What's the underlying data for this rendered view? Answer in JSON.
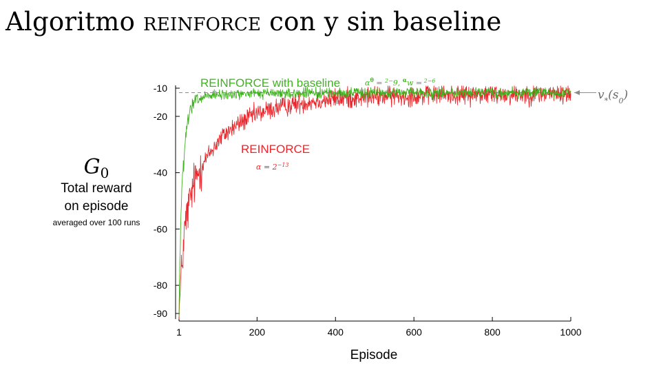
{
  "slide": {
    "title_prefix": "Algoritmo ",
    "title_method": "reinforce",
    "title_suffix": " con y sin baseline"
  },
  "ylabel": {
    "symbol": "G",
    "subscript": "0",
    "line1": "Total reward",
    "line2": "on episode",
    "line3": "averaged over 100 runs"
  },
  "annotations": {
    "baseline_label": "REINFORCE with baseline",
    "baseline_params": "αθ = 2−9,  αw = 2−6",
    "reinforce_label": "REINFORCE",
    "reinforce_param": "α = 2−13",
    "optimal_label": "v*(s0)"
  },
  "colors": {
    "baseline": "#3fb21f",
    "reinforce": "#e8262b",
    "optimal": "#8a8a8a",
    "axis": "#000000"
  },
  "chart_data": {
    "type": "line",
    "title": "",
    "xlabel": "Episode",
    "ylabel": "Total reward on episode",
    "xlim": [
      1,
      1000
    ],
    "ylim": [
      -92,
      -9
    ],
    "x_ticks": [
      1,
      200,
      400,
      600,
      800,
      1000
    ],
    "y_ticks": [
      -10,
      -20,
      -40,
      -60,
      -80,
      -90
    ],
    "grid": false,
    "reference_line": {
      "name": "v*(s0)",
      "y": -11.6,
      "style": "dashed"
    },
    "series": [
      {
        "name": "REINFORCE with baseline",
        "color": "#3fb21f",
        "noise": 0.9,
        "points": [
          [
            1,
            -90
          ],
          [
            3,
            -72
          ],
          [
            5,
            -60
          ],
          [
            8,
            -47
          ],
          [
            12,
            -38
          ],
          [
            16,
            -31
          ],
          [
            20,
            -25
          ],
          [
            25,
            -21
          ],
          [
            30,
            -18
          ],
          [
            40,
            -15
          ],
          [
            50,
            -14
          ],
          [
            70,
            -13
          ],
          [
            100,
            -12.5
          ],
          [
            150,
            -12.1
          ],
          [
            200,
            -11.9
          ],
          [
            300,
            -11.8
          ],
          [
            400,
            -11.7
          ],
          [
            600,
            -11.6
          ],
          [
            800,
            -11.6
          ],
          [
            1000,
            -11.6
          ]
        ]
      },
      {
        "name": "REINFORCE",
        "color": "#e8262b",
        "noise": 1.8,
        "points": [
          [
            1,
            -91
          ],
          [
            5,
            -80
          ],
          [
            10,
            -70
          ],
          [
            15,
            -61
          ],
          [
            20,
            -56
          ],
          [
            30,
            -49
          ],
          [
            40,
            -44
          ],
          [
            50,
            -40
          ],
          [
            60,
            -37
          ],
          [
            80,
            -33
          ],
          [
            100,
            -29
          ],
          [
            120,
            -26
          ],
          [
            140,
            -24
          ],
          [
            160,
            -22
          ],
          [
            180,
            -20.5
          ],
          [
            200,
            -19
          ],
          [
            250,
            -17
          ],
          [
            300,
            -15.5
          ],
          [
            350,
            -14.5
          ],
          [
            400,
            -13.8
          ],
          [
            500,
            -13
          ],
          [
            600,
            -12.6
          ],
          [
            700,
            -12.3
          ],
          [
            800,
            -12.2
          ],
          [
            900,
            -12.1
          ],
          [
            1000,
            -12
          ]
        ]
      }
    ]
  }
}
